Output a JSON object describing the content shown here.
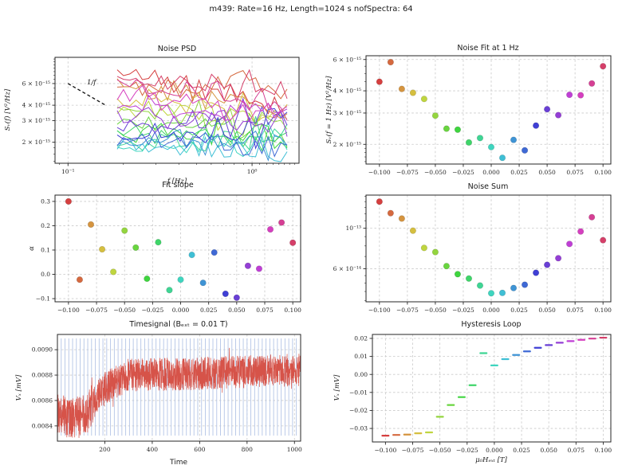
{
  "figure": {
    "suptitle": "m439:  Rate=16 Hz,  Length=1024 s nofSpectra:  64",
    "background": "#ffffff",
    "grid_color": "#c9c9c9",
    "spine_color": "#262626",
    "tick_color": "#262626",
    "palette": [
      "#d53f3f",
      "#d5693f",
      "#d5943f",
      "#d5bf3f",
      "#bfd53f",
      "#94d53f",
      "#69d53f",
      "#3fd53f",
      "#3fd569",
      "#3fd594",
      "#3fd5bf",
      "#3fbfd5",
      "#3f94d5",
      "#3f69d5",
      "#3f3fd5",
      "#693fd5",
      "#943fd5",
      "#bf3fd5",
      "#d53fbf",
      "#d53f94",
      "#d53f69"
    ]
  },
  "chart_data": [
    {
      "id": "noise-psd",
      "type": "line",
      "title": "Noise PSD",
      "xlabel": "f [Hz]",
      "ylabel": "Sᵥ(f) [V²/Hz]",
      "xscale": "log",
      "yscale": "log",
      "xlim": [
        0.085,
        1.8
      ],
      "ylim": [
        1.35e-15,
        9.8e-15
      ],
      "xticks": [
        {
          "v": 0.1,
          "l": "10⁻¹"
        },
        {
          "v": 1,
          "l": "10⁰"
        }
      ],
      "xminor": [
        0.09,
        0.2,
        0.3,
        0.4,
        0.5,
        0.6,
        0.7,
        0.8,
        0.9,
        1.1,
        1.2,
        1.3,
        1.4,
        1.5,
        1.6,
        1.7
      ],
      "yticks": [
        {
          "v": 2e-15,
          "l": "2 × 10⁻¹⁵"
        },
        {
          "v": 3e-15,
          "l": "3 × 10⁻¹⁵"
        },
        {
          "v": 4e-15,
          "l": "4 × 10⁻¹⁵"
        },
        {
          "v": 6e-15,
          "l": "6 × 10⁻¹⁵"
        }
      ],
      "yminor": [
        1.4e-15,
        1.6e-15,
        1.8e-15,
        2.5e-15,
        3.5e-15,
        4.5e-15,
        5e-15,
        5.5e-15,
        6.5e-15,
        7e-15,
        7.5e-15,
        8e-15,
        8.5e-15,
        9e-15,
        9.5e-15
      ],
      "grid": {
        "x": true,
        "y": true
      },
      "annotation": {
        "text": "1/f",
        "x1": 0.1,
        "y1": 6e-15,
        "x2": 0.16,
        "y2": 4e-15
      },
      "series_f_range": [
        0.185,
        1.55
      ],
      "series_points": 28,
      "noise_sigma": 0.1,
      "seed": 439,
      "levels_at_1hz": [
        4.5e-15,
        5.8e-15,
        4.1e-15,
        3.9e-15,
        3.6e-15,
        2.9e-15,
        2.45e-15,
        2.42e-15,
        2.05e-15,
        2.17e-15,
        1.93e-15,
        1.68e-15,
        2.12e-15,
        1.85e-15,
        2.55e-15,
        3.15e-15,
        2.92e-15,
        3.8e-15,
        3.78e-15,
        4.4e-15,
        5.5e-15
      ],
      "slopes": [
        0.3,
        -0.022,
        0.205,
        0.103,
        0.01,
        0.18,
        0.11,
        -0.018,
        0.132,
        -0.065,
        -0.022,
        0.08,
        -0.035,
        0.09,
        -0.08,
        -0.096,
        0.035,
        0.023,
        0.185,
        0.213,
        0.13
      ]
    },
    {
      "id": "noise-fit",
      "type": "scatter",
      "title": "Noise Fit at 1 Hz",
      "xlabel": "",
      "ylabel": "Sᵥ(f = 1 Hz) [V²/Hz]",
      "xscale": "linear",
      "yscale": "log",
      "xlim": [
        -0.112,
        0.107
      ],
      "ylim": [
        1.55e-15,
        6.3e-15
      ],
      "xticks": [
        {
          "v": -0.1,
          "l": "−0.100"
        },
        {
          "v": -0.075,
          "l": "−0.075"
        },
        {
          "v": -0.05,
          "l": "−0.050"
        },
        {
          "v": -0.025,
          "l": "−0.025"
        },
        {
          "v": 0,
          "l": "0.000"
        },
        {
          "v": 0.025,
          "l": "0.025"
        },
        {
          "v": 0.05,
          "l": "0.050"
        },
        {
          "v": 0.075,
          "l": "0.075"
        },
        {
          "v": 0.1,
          "l": "0.100"
        }
      ],
      "yticks": [
        {
          "v": 2e-15,
          "l": "2 × 10⁻¹⁵"
        },
        {
          "v": 3e-15,
          "l": "3 × 10⁻¹⁵"
        },
        {
          "v": 4e-15,
          "l": "4 × 10⁻¹⁵"
        },
        {
          "v": 6e-15,
          "l": "6 × 10⁻¹⁵"
        }
      ],
      "yminor": [
        1.6e-15,
        1.7e-15,
        1.8e-15,
        1.9e-15,
        2.5e-15,
        3.5e-15,
        4.5e-15,
        5e-15,
        5.5e-15
      ],
      "grid": {
        "x": true,
        "y": true
      },
      "x": [
        -0.1,
        -0.09,
        -0.08,
        -0.07,
        -0.06,
        -0.05,
        -0.04,
        -0.03,
        -0.02,
        -0.01,
        0,
        0.01,
        0.02,
        0.03,
        0.04,
        0.05,
        0.06,
        0.07,
        0.08,
        0.09,
        0.1
      ],
      "y": [
        4.5e-15,
        5.8e-15,
        4.1e-15,
        3.9e-15,
        3.6e-15,
        2.9e-15,
        2.45e-15,
        2.42e-15,
        2.05e-15,
        2.17e-15,
        1.93e-15,
        1.68e-15,
        2.12e-15,
        1.85e-15,
        2.55e-15,
        3.15e-15,
        2.92e-15,
        3.8e-15,
        3.78e-15,
        4.4e-15,
        5.5e-15
      ]
    },
    {
      "id": "fit-slope",
      "type": "scatter",
      "title": "Fit slope",
      "xlabel": "",
      "ylabel": "α",
      "xscale": "linear",
      "yscale": "linear",
      "xlim": [
        -0.112,
        0.107
      ],
      "ylim": [
        -0.113,
        0.326
      ],
      "xticks": [
        {
          "v": -0.1,
          "l": "−0.100"
        },
        {
          "v": -0.075,
          "l": "−0.075"
        },
        {
          "v": -0.05,
          "l": "−0.050"
        },
        {
          "v": -0.025,
          "l": "−0.025"
        },
        {
          "v": 0,
          "l": "0.000"
        },
        {
          "v": 0.025,
          "l": "0.025"
        },
        {
          "v": 0.05,
          "l": "0.050"
        },
        {
          "v": 0.075,
          "l": "0.075"
        },
        {
          "v": 0.1,
          "l": "0.100"
        }
      ],
      "yticks": [
        {
          "v": -0.1,
          "l": "−0.1"
        },
        {
          "v": 0,
          "l": "0.0"
        },
        {
          "v": 0.1,
          "l": "0.1"
        },
        {
          "v": 0.2,
          "l": "0.2"
        },
        {
          "v": 0.3,
          "l": "0.3"
        }
      ],
      "grid": {
        "x": true,
        "y": true
      },
      "x": [
        -0.1,
        -0.09,
        -0.08,
        -0.07,
        -0.06,
        -0.05,
        -0.04,
        -0.03,
        -0.02,
        -0.01,
        0,
        0.01,
        0.02,
        0.03,
        0.04,
        0.05,
        0.06,
        0.07,
        0.08,
        0.09,
        0.1
      ],
      "y": [
        0.3,
        -0.022,
        0.205,
        0.103,
        0.01,
        0.18,
        0.11,
        -0.018,
        0.132,
        -0.065,
        -0.022,
        0.08,
        -0.035,
        0.09,
        -0.08,
        -0.096,
        0.035,
        0.023,
        0.185,
        0.213,
        0.13
      ]
    },
    {
      "id": "noise-sum",
      "type": "scatter",
      "title": "Noise Sum",
      "xlabel": "",
      "ylabel": "",
      "xscale": "linear",
      "yscale": "log",
      "xlim": [
        -0.112,
        0.107
      ],
      "ylim": [
        3.95e-14,
        1.52e-13
      ],
      "xticks": [
        {
          "v": -0.1,
          "l": "−0.100"
        },
        {
          "v": -0.075,
          "l": "−0.075"
        },
        {
          "v": -0.05,
          "l": "−0.050"
        },
        {
          "v": -0.025,
          "l": "−0.025"
        },
        {
          "v": 0,
          "l": "0.000"
        },
        {
          "v": 0.025,
          "l": "0.025"
        },
        {
          "v": 0.05,
          "l": "0.050"
        },
        {
          "v": 0.075,
          "l": "0.075"
        },
        {
          "v": 0.1,
          "l": "0.100"
        }
      ],
      "yticks": [
        {
          "v": 6e-14,
          "l": "6 × 10⁻¹⁴"
        },
        {
          "v": 1e-13,
          "l": "10⁻¹³"
        }
      ],
      "yminor": [
        4e-14,
        4.5e-14,
        5e-14,
        5.5e-14,
        7e-14,
        8e-14,
        9e-14,
        1.1e-13,
        1.2e-13,
        1.3e-13,
        1.4e-13,
        1.5e-13
      ],
      "grid": {
        "x": true,
        "y": true
      },
      "x": [
        -0.1,
        -0.09,
        -0.08,
        -0.07,
        -0.06,
        -0.05,
        -0.04,
        -0.03,
        -0.02,
        -0.01,
        0,
        0.01,
        0.02,
        0.03,
        0.04,
        0.05,
        0.06,
        0.07,
        0.08,
        0.09,
        0.1
      ],
      "y": [
        1.4e-13,
        1.21e-13,
        1.13e-13,
        9.7e-14,
        7.8e-14,
        7.4e-14,
        6.2e-14,
        5.6e-14,
        5.3e-14,
        4.85e-14,
        4.4e-14,
        4.42e-14,
        4.7e-14,
        4.9e-14,
        5.7e-14,
        6.3e-14,
        6.85e-14,
        8.2e-14,
        9.6e-14,
        1.15e-13,
        8.6e-14
      ]
    },
    {
      "id": "timesignal",
      "type": "line",
      "title": "Timesignal (Bₑₓₜ = 0.01 T)",
      "xlabel": "Time",
      "ylabel": "Vₓ [mV]",
      "xscale": "linear",
      "yscale": "linear",
      "xlim": [
        0,
        1026
      ],
      "ylim": [
        0.00828,
        0.00912
      ],
      "xticks": [
        {
          "v": 200,
          "l": "200"
        },
        {
          "v": 400,
          "l": "400"
        },
        {
          "v": 600,
          "l": "600"
        },
        {
          "v": 800,
          "l": "800"
        },
        {
          "v": 1000,
          "l": "1000"
        }
      ],
      "yticks": [
        {
          "v": 0.0084,
          "l": "0.0084"
        },
        {
          "v": 0.0086,
          "l": "0.0086"
        },
        {
          "v": 0.0088,
          "l": "0.0088"
        },
        {
          "v": 0.009,
          "l": "0.0090"
        }
      ],
      "grid": {
        "x": true,
        "y": true
      },
      "line_color": "#d65349",
      "comb_interval": 16,
      "comb_color": "#b3c4e6",
      "n_points": 1600,
      "seed": 16,
      "noise_amp_early": 0.00016,
      "noise_amp_late": 0.00013,
      "envelope": [
        [
          0,
          0.00851
        ],
        [
          55,
          0.00845
        ],
        [
          125,
          0.0085
        ],
        [
          185,
          0.00868
        ],
        [
          300,
          0.0088
        ],
        [
          550,
          0.00881
        ],
        [
          1024,
          0.00884
        ]
      ]
    },
    {
      "id": "hysteresis",
      "type": "dash-scatter",
      "title": "Hysteresis Loop",
      "xlabel": "μ₀Hₑₓₜ [T]",
      "ylabel": "Vₓ [mV]",
      "xscale": "linear",
      "yscale": "linear",
      "xlim": [
        -0.112,
        0.107
      ],
      "ylim": [
        -0.0375,
        0.0222
      ],
      "xticks": [
        {
          "v": -0.1,
          "l": "−0.100"
        },
        {
          "v": -0.075,
          "l": "−0.075"
        },
        {
          "v": -0.05,
          "l": "−0.050"
        },
        {
          "v": -0.025,
          "l": "−0.025"
        },
        {
          "v": 0,
          "l": "0.000"
        },
        {
          "v": 0.025,
          "l": "0.025"
        },
        {
          "v": 0.05,
          "l": "0.050"
        },
        {
          "v": 0.075,
          "l": "0.075"
        },
        {
          "v": 0.1,
          "l": "0.100"
        }
      ],
      "yticks": [
        {
          "v": -0.03,
          "l": "−0.03"
        },
        {
          "v": -0.02,
          "l": "−0.02"
        },
        {
          "v": -0.01,
          "l": "−0.01"
        },
        {
          "v": 0,
          "l": "0.00"
        },
        {
          "v": 0.01,
          "l": "0.01"
        },
        {
          "v": 0.02,
          "l": "0.02"
        }
      ],
      "grid": {
        "x": true,
        "y": true
      },
      "x": [
        -0.1,
        -0.09,
        -0.08,
        -0.07,
        -0.06,
        -0.05,
        -0.04,
        -0.03,
        -0.02,
        -0.01,
        0,
        0.01,
        0.02,
        0.03,
        0.04,
        0.05,
        0.06,
        0.07,
        0.08,
        0.09,
        0.1
      ],
      "y": [
        -0.034,
        -0.0336,
        -0.0334,
        -0.0327,
        -0.0322,
        -0.0235,
        -0.017,
        -0.0126,
        -0.006,
        0.0118,
        0.005,
        0.0085,
        0.0108,
        0.0128,
        0.0148,
        0.0163,
        0.0176,
        0.0185,
        0.0192,
        0.0199,
        0.0204
      ]
    }
  ]
}
